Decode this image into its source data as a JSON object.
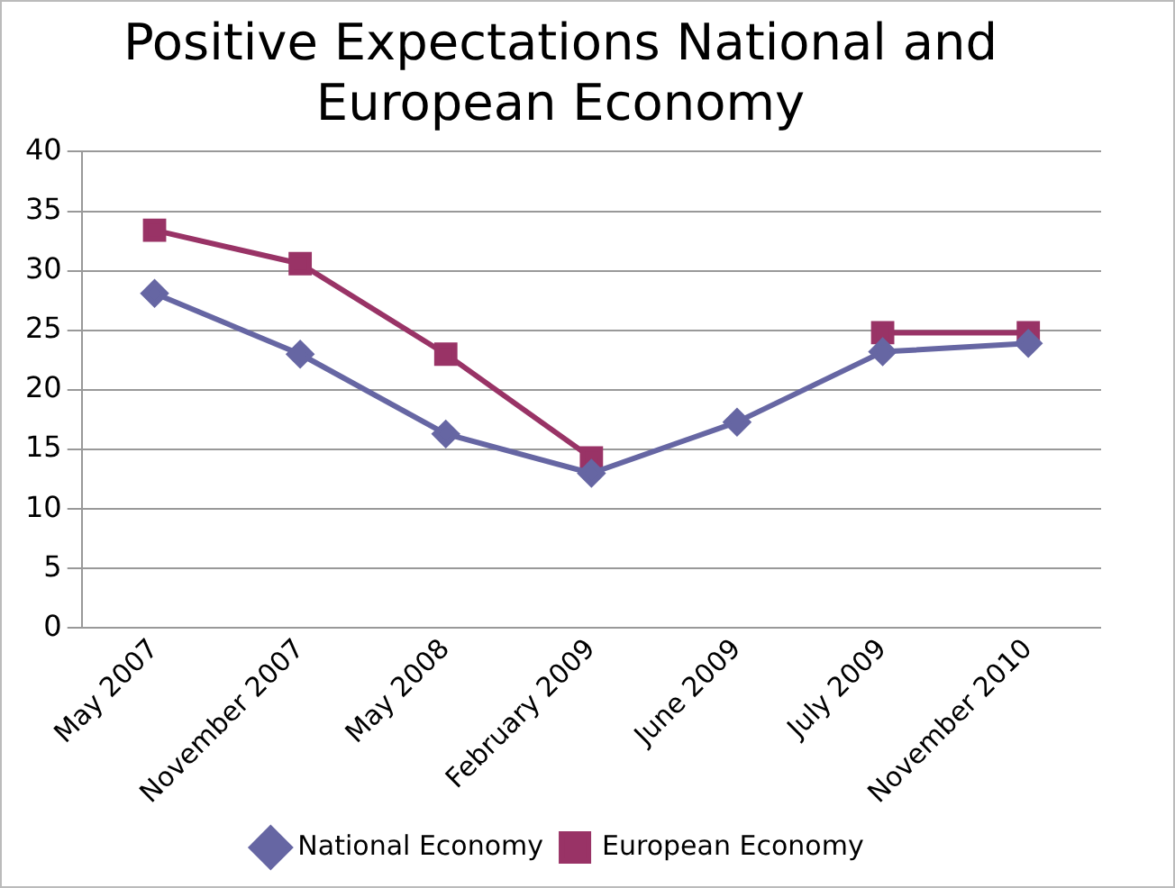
{
  "chart_data": {
    "type": "line",
    "title": "Positive Expectations National and European Economy",
    "categories": [
      "May 2007",
      "November 2007",
      "May 2008",
      "February 2009",
      "June 2009",
      "July 2009",
      "November 2010"
    ],
    "series": [
      {
        "name": "National Economy",
        "color": "#6666a3",
        "marker": "diamond",
        "values": [
          28.1,
          23,
          16.3,
          13,
          17.3,
          23.2,
          23.9
        ]
      },
      {
        "name": "European Economy",
        "color": "#993366",
        "marker": "square",
        "values": [
          33.4,
          30.6,
          23,
          14.3,
          null,
          24.8,
          24.8
        ]
      }
    ],
    "ylim": [
      0,
      40
    ],
    "yticks": [
      0,
      5,
      10,
      15,
      20,
      25,
      30,
      35,
      40
    ],
    "grid": "y",
    "legend": "bottom",
    "line_style": "solid"
  }
}
